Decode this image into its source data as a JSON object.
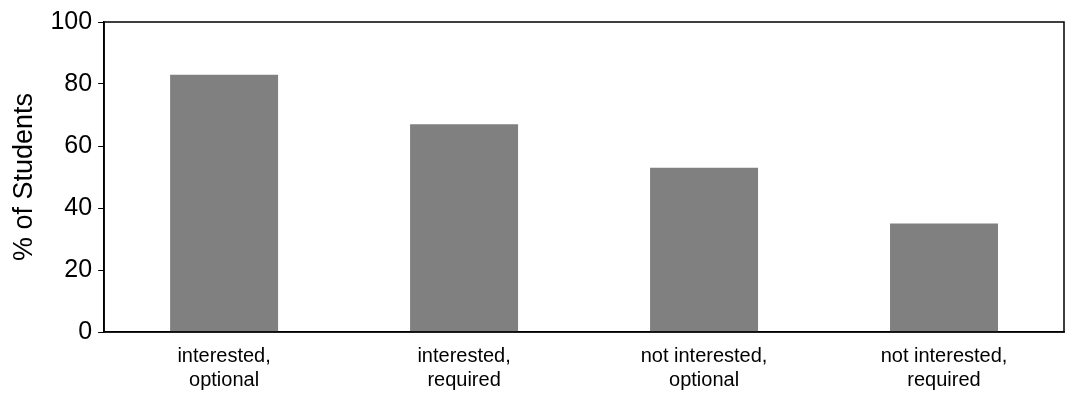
{
  "chart_data": {
    "type": "bar",
    "ylabel": "% of Students",
    "categories": [
      "interested, optional",
      "interested, required",
      "not interested, optional",
      "not interested, required"
    ],
    "values": [
      83,
      67,
      53,
      35
    ],
    "color": "#808080",
    "ylim": [
      0,
      100
    ],
    "yticks": [
      0,
      20,
      40,
      60,
      80,
      100
    ],
    "grid": false,
    "legend": false
  }
}
